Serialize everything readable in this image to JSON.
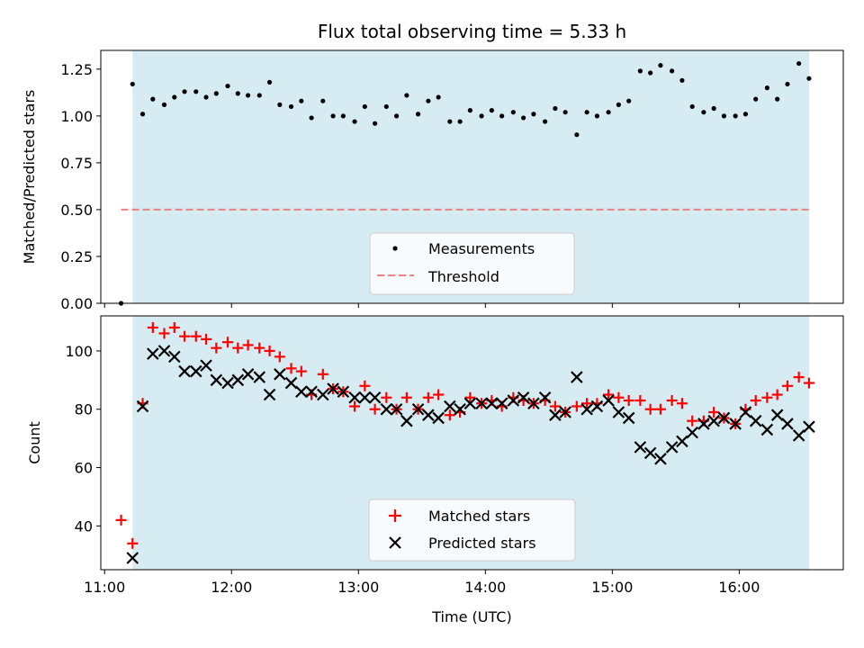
{
  "chart_data": [
    {
      "type": "scatter",
      "title": "Flux total observing time = 5.33 h",
      "xlabel": "",
      "ylabel": "Matched/Predicted stars",
      "ylim": [
        0,
        1.35
      ],
      "yticks": [
        "0.00",
        "0.25",
        "0.50",
        "0.75",
        "1.00",
        "1.25"
      ],
      "xlim": [
        10.97,
        16.82
      ],
      "observing_window": [
        11.22,
        16.55
      ],
      "legend": {
        "position": "lower-center",
        "entries": [
          "Measurements",
          "Threshold"
        ]
      },
      "threshold": {
        "name": "Threshold",
        "value": 0.5,
        "x": [
          11.13,
          16.55
        ],
        "color": "#f08080",
        "style": "dashed"
      },
      "series": [
        {
          "name": "Measurements",
          "marker": "dot",
          "color": "#000000",
          "x": [
            11.13,
            11.22,
            11.3,
            11.38,
            11.47,
            11.55,
            11.63,
            11.72,
            11.8,
            11.88,
            11.97,
            12.05,
            12.13,
            12.22,
            12.3,
            12.38,
            12.47,
            12.55,
            12.63,
            12.72,
            12.8,
            12.88,
            12.97,
            13.05,
            13.13,
            13.22,
            13.3,
            13.38,
            13.47,
            13.55,
            13.63,
            13.72,
            13.8,
            13.88,
            13.97,
            14.05,
            14.13,
            14.22,
            14.3,
            14.38,
            14.47,
            14.55,
            14.63,
            14.72,
            14.8,
            14.88,
            14.97,
            15.05,
            15.13,
            15.22,
            15.3,
            15.38,
            15.47,
            15.55,
            15.63,
            15.72,
            15.8,
            15.88,
            15.97,
            16.05,
            16.13,
            16.22,
            16.3,
            16.38,
            16.47,
            16.55
          ],
          "y": [
            0.0,
            1.17,
            1.01,
            1.09,
            1.06,
            1.1,
            1.13,
            1.13,
            1.1,
            1.12,
            1.16,
            1.12,
            1.11,
            1.11,
            1.18,
            1.06,
            1.05,
            1.08,
            0.99,
            1.08,
            1.0,
            1.0,
            0.97,
            1.05,
            0.96,
            1.05,
            1.0,
            1.11,
            1.01,
            1.08,
            1.1,
            0.97,
            0.97,
            1.03,
            1.0,
            1.03,
            1.0,
            1.02,
            0.99,
            1.01,
            0.97,
            1.04,
            1.02,
            0.9,
            1.02,
            1.0,
            1.02,
            1.06,
            1.08,
            1.24,
            1.23,
            1.27,
            1.24,
            1.19,
            1.05,
            1.02,
            1.04,
            1.0,
            1.0,
            1.01,
            1.09,
            1.15,
            1.09,
            1.17,
            1.28,
            1.2
          ]
        }
      ]
    },
    {
      "type": "scatter",
      "title": "",
      "xlabel": "Time (UTC)",
      "ylabel": "Count",
      "ylim": [
        25,
        112
      ],
      "yticks": [
        "40",
        "60",
        "80",
        "100"
      ],
      "xlim": [
        10.97,
        16.82
      ],
      "xticks": [
        "11:00",
        "12:00",
        "13:00",
        "14:00",
        "15:00",
        "16:00"
      ],
      "observing_window": [
        11.22,
        16.55
      ],
      "legend": {
        "position": "lower-center",
        "entries": [
          "Matched stars",
          "Predicted stars"
        ]
      },
      "series": [
        {
          "name": "Matched stars",
          "marker": "plus",
          "color": "#ff0000",
          "x": [
            11.13,
            11.22,
            11.3,
            11.38,
            11.47,
            11.55,
            11.63,
            11.72,
            11.8,
            11.88,
            11.97,
            12.05,
            12.13,
            12.22,
            12.3,
            12.38,
            12.47,
            12.55,
            12.63,
            12.72,
            12.8,
            12.88,
            12.97,
            13.05,
            13.13,
            13.22,
            13.3,
            13.38,
            13.47,
            13.55,
            13.63,
            13.72,
            13.8,
            13.88,
            13.97,
            14.05,
            14.13,
            14.22,
            14.3,
            14.38,
            14.47,
            14.55,
            14.63,
            14.72,
            14.8,
            14.88,
            14.97,
            15.05,
            15.13,
            15.22,
            15.3,
            15.38,
            15.47,
            15.55,
            15.63,
            15.72,
            15.8,
            15.88,
            15.97,
            16.05,
            16.13,
            16.22,
            16.3,
            16.38,
            16.47,
            16.55
          ],
          "y": [
            42,
            34,
            82,
            108,
            106,
            108,
            105,
            105,
            104,
            101,
            103,
            101,
            102,
            101,
            100,
            98,
            94,
            93,
            85,
            92,
            87,
            86,
            81,
            88,
            80,
            84,
            80,
            84,
            80,
            84,
            85,
            78,
            79,
            84,
            82,
            83,
            81,
            84,
            83,
            82,
            83,
            81,
            79,
            81,
            82,
            82,
            85,
            84,
            83,
            83,
            80,
            80,
            83,
            82,
            76,
            76,
            79,
            77,
            75,
            80,
            83,
            84,
            85,
            88,
            91,
            89
          ]
        },
        {
          "name": "Predicted stars",
          "marker": "x",
          "color": "#000000",
          "x": [
            11.22,
            11.3,
            11.38,
            11.47,
            11.55,
            11.63,
            11.72,
            11.8,
            11.88,
            11.97,
            12.05,
            12.13,
            12.22,
            12.3,
            12.38,
            12.47,
            12.55,
            12.63,
            12.72,
            12.8,
            12.88,
            12.97,
            13.05,
            13.13,
            13.22,
            13.3,
            13.38,
            13.47,
            13.55,
            13.63,
            13.72,
            13.8,
            13.88,
            13.97,
            14.05,
            14.13,
            14.22,
            14.3,
            14.38,
            14.47,
            14.55,
            14.63,
            14.72,
            14.8,
            14.88,
            14.97,
            15.05,
            15.13,
            15.22,
            15.3,
            15.38,
            15.47,
            15.55,
            15.63,
            15.72,
            15.8,
            15.88,
            15.97,
            16.05,
            16.13,
            16.22,
            16.3,
            16.38,
            16.47,
            16.55
          ],
          "y": [
            29,
            81,
            99,
            100,
            98,
            93,
            93,
            95,
            90,
            89,
            90,
            92,
            91,
            85,
            92,
            89,
            86,
            86,
            85,
            87,
            86,
            84,
            84,
            84,
            80,
            80,
            76,
            80,
            78,
            77,
            81,
            80,
            82,
            82,
            82,
            82,
            83,
            84,
            82,
            84,
            78,
            79,
            91,
            80,
            81,
            83,
            79,
            77,
            67,
            65,
            63,
            67,
            69,
            72,
            75,
            76,
            77,
            75,
            79,
            76,
            73,
            78,
            75,
            71,
            74
          ]
        }
      ]
    }
  ]
}
